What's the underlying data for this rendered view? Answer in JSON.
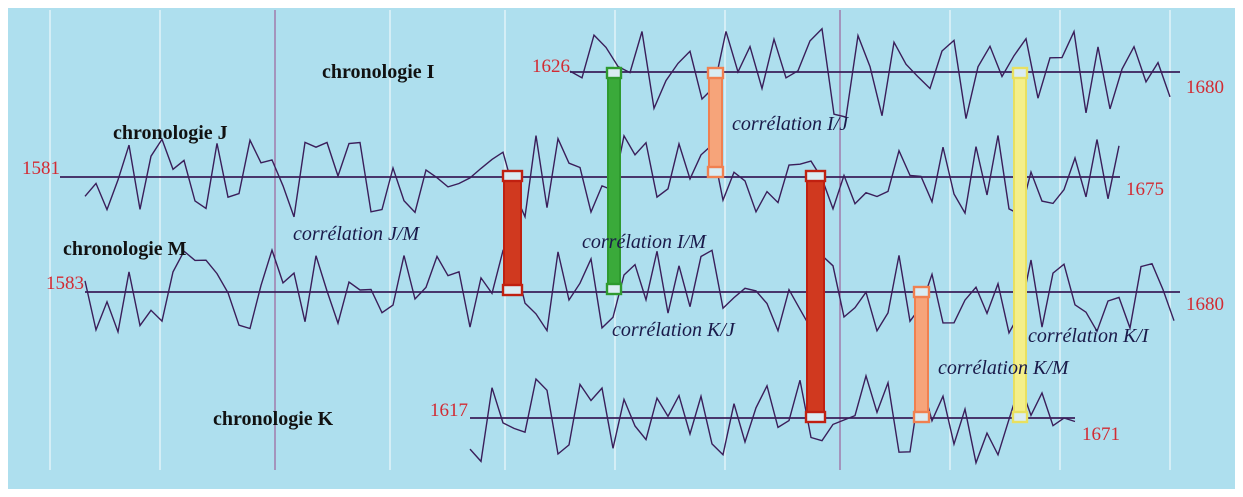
{
  "colors": {
    "background": "#aedfee",
    "frame": "#ffffff",
    "grid_line": "#eef8fb",
    "grid_line_accent": "#9a4a8a",
    "series_line": "#3a1e5a",
    "year_label": "#d22b33",
    "text": "#111111",
    "label_italic": "#1a1a4a"
  },
  "chronologies": [
    {
      "id": "I",
      "label": "chronologie I",
      "start_year": "1626",
      "end_year": "1680"
    },
    {
      "id": "J",
      "label": "chronologie J",
      "start_year": "1581",
      "end_year": "1675"
    },
    {
      "id": "M",
      "label": "chronologie M",
      "start_year": "1583",
      "end_year": "1680"
    },
    {
      "id": "K",
      "label": "chronologie K",
      "start_year": "1617",
      "end_year": "1671"
    }
  ],
  "correlations": [
    {
      "label": "corrélation I/J",
      "from": "I",
      "to": "J",
      "color": "#f6a47a",
      "border": "#f08050",
      "width": "thin"
    },
    {
      "label": "corrélation J/M",
      "from": "J",
      "to": "M",
      "color": "#d0391f",
      "border": "#c02010",
      "width": "thick"
    },
    {
      "label": "corrélation I/M",
      "from": "I",
      "to": "M",
      "color": "#3aaa3a",
      "border": "#2e9a2e",
      "width": "thin"
    },
    {
      "label": "corrélation K/J",
      "from": "J",
      "to": "K",
      "color": "#d0391f",
      "border": "#c02010",
      "width": "thick"
    },
    {
      "label": "corrélation K/M",
      "from": "M",
      "to": "K",
      "color": "#f6a47a",
      "border": "#f08050",
      "width": "thin"
    },
    {
      "label": "corrélation K/I",
      "from": "I",
      "to": "K",
      "color": "#f4ef8a",
      "border": "#e8e060",
      "width": "thin"
    }
  ]
}
